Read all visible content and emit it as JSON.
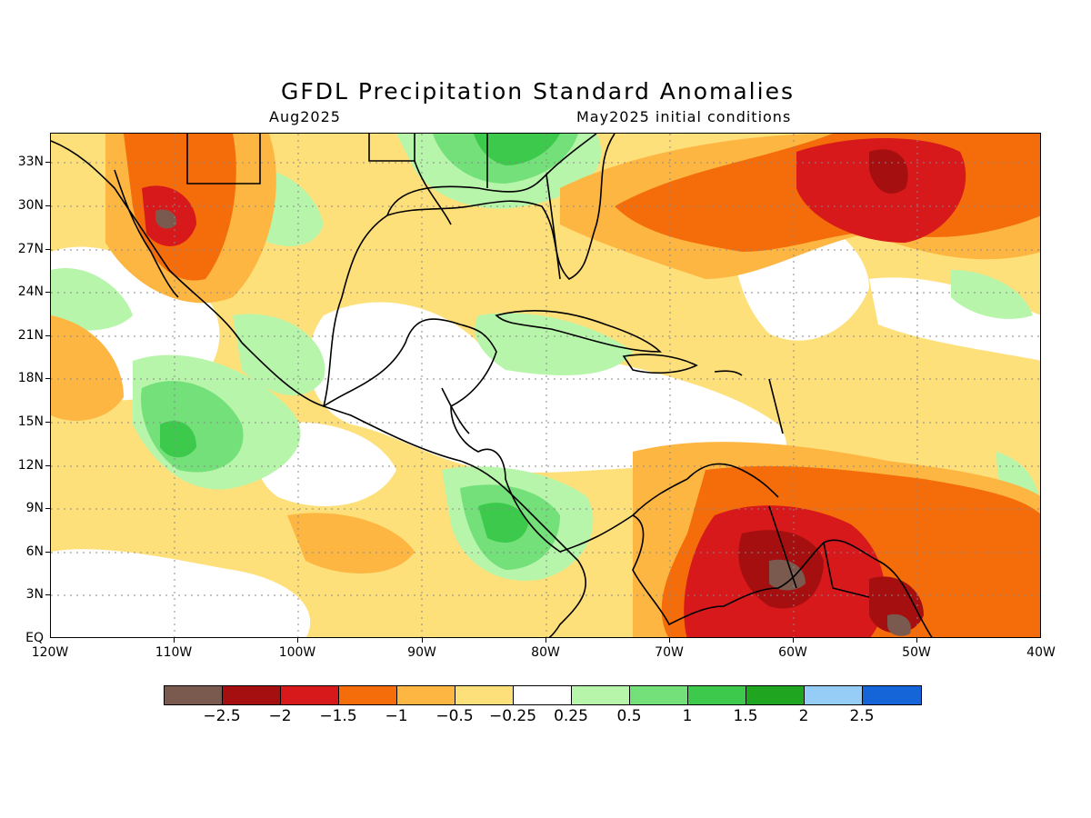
{
  "title": "GFDL Precipitation Standard Anomalies",
  "subtitle_left": "Aug2025",
  "subtitle_right": "May2025 initial conditions",
  "latitude_labels": [
    "33N",
    "30N",
    "27N",
    "24N",
    "21N",
    "18N",
    "15N",
    "12N",
    "9N",
    "6N",
    "3N",
    "EQ"
  ],
  "longitude_labels": [
    "120W",
    "110W",
    "100W",
    "90W",
    "80W",
    "70W",
    "60W",
    "50W",
    "40W"
  ],
  "colorbar": {
    "colors": [
      "#7a5a4e",
      "#a50f0f",
      "#d7191c",
      "#f46d0a",
      "#fdb642",
      "#fee07a",
      "#ffffff",
      "#b7f5aa",
      "#74e07a",
      "#3cc94c",
      "#1fa51f",
      "#96cdf7",
      "#1565d8"
    ],
    "labels": [
      "-2.5",
      "-2",
      "-1.5",
      "-1",
      "-0.5",
      "-0.25",
      "0.25",
      "0.5",
      "1",
      "1.5",
      "2",
      "2.5"
    ]
  },
  "map_extent": {
    "lon": [
      "120W",
      "40W"
    ],
    "lat": [
      "EQ",
      "35N"
    ]
  }
}
